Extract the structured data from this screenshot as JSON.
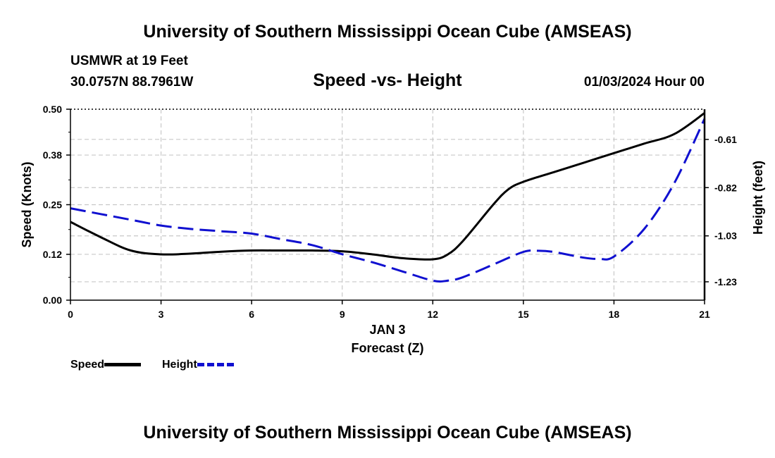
{
  "header": {
    "title": "University of Southern Mississippi Ocean Cube (AMSEAS)",
    "station": "USMWR at 19 Feet",
    "coords": "30.0757N  88.7961W",
    "subtitle": "Speed -vs- Height",
    "datetime": "01/03/2024 Hour 00"
  },
  "footer": {
    "title": "University of Southern Mississippi Ocean Cube (AMSEAS)"
  },
  "legend": {
    "speed_label": "Speed",
    "height_label": "Height"
  },
  "colors": {
    "speed": "#000000",
    "height": "#1010d0",
    "grid": "#c8c8c8"
  },
  "chart_data": {
    "type": "line",
    "title": "Speed -vs- Height",
    "xlabel": "Forecast (Z)",
    "xlabel_date": "JAN 3",
    "ylabel": "Speed (Knots)",
    "ylabel_right": "Height (feet)",
    "xlim": [
      0,
      21
    ],
    "ylim": [
      0,
      0.5
    ],
    "ylim_right": [
      -1.31,
      -0.4786
    ],
    "x_ticks": [
      "0",
      "3",
      "6",
      "9",
      "12",
      "15",
      "18",
      "21"
    ],
    "y_ticks": [
      "0.00",
      "0.12",
      "0.25",
      "0.38",
      "0.50"
    ],
    "y_ticks_right": [
      "-1.23",
      "-1.03",
      "-0.82",
      "-0.61"
    ],
    "grid": true,
    "legend": "bottom-left",
    "series": [
      {
        "name": "Speed",
        "axis": "left",
        "style": "solid",
        "x": [
          0,
          1,
          2,
          3,
          4,
          5,
          6,
          7,
          8,
          9,
          10,
          11,
          12,
          12.5,
          13,
          14,
          14.5,
          15,
          16,
          17,
          18,
          19,
          20,
          21
        ],
        "values": [
          0.205,
          0.165,
          0.13,
          0.12,
          0.122,
          0.127,
          0.13,
          0.13,
          0.13,
          0.128,
          0.12,
          0.11,
          0.107,
          0.12,
          0.155,
          0.25,
          0.29,
          0.31,
          0.335,
          0.36,
          0.385,
          0.41,
          0.435,
          0.49
        ]
      },
      {
        "name": "Height",
        "axis": "right",
        "style": "dashed",
        "x": [
          0,
          1,
          2,
          3,
          4,
          5,
          6,
          7,
          8,
          9,
          10,
          11,
          12,
          12.5,
          13,
          14,
          15,
          15.5,
          16,
          17,
          17.5,
          18,
          19,
          20,
          21
        ],
        "values": [
          -0.91,
          -0.935,
          -0.96,
          -0.985,
          -1.0,
          -1.01,
          -1.02,
          -1.045,
          -1.07,
          -1.11,
          -1.145,
          -1.185,
          -1.225,
          -1.225,
          -1.21,
          -1.155,
          -1.1,
          -1.095,
          -1.1,
          -1.125,
          -1.13,
          -1.12,
          -1.0,
          -0.8,
          -0.52
        ]
      }
    ]
  }
}
